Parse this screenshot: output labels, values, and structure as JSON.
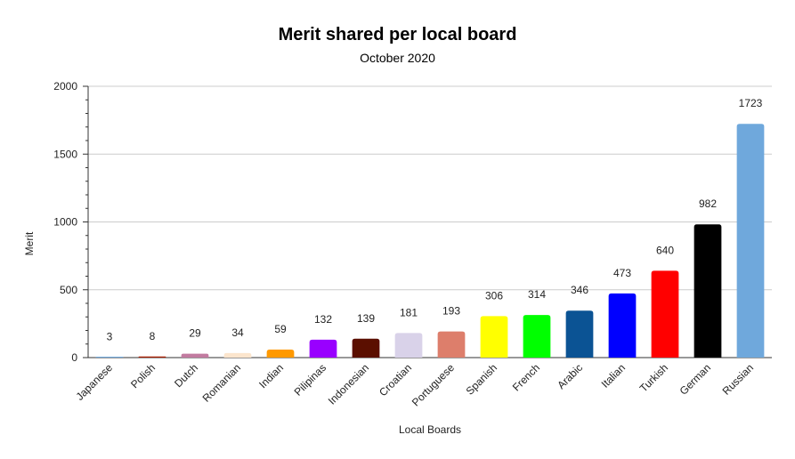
{
  "chart_data": {
    "type": "bar",
    "title": "Merit shared per local board",
    "subtitle": "October 2020",
    "xlabel": "Local Boards",
    "ylabel": "Merit",
    "ylim": [
      0,
      2000
    ],
    "yticks": [
      0,
      500,
      1000,
      1500,
      2000
    ],
    "grid": true,
    "legend": "none",
    "categories": [
      "Japanese",
      "Polish",
      "Dutch",
      "Romanian",
      "Indian",
      "Pilipinas",
      "Indonesian",
      "Croatian",
      "Portuguese",
      "Spanish",
      "French",
      "Arabic",
      "Italian",
      "Turkish",
      "German",
      "Russian"
    ],
    "values": [
      3,
      8,
      29,
      34,
      59,
      132,
      139,
      181,
      193,
      306,
      314,
      346,
      473,
      640,
      982,
      1723
    ],
    "colors": [
      "#6fa8dc",
      "#a61c00",
      "#c27ba0",
      "#fce5cd",
      "#ff9900",
      "#9900ff",
      "#5b0f00",
      "#d9d2e9",
      "#dd7e6b",
      "#ffff00",
      "#00ff00",
      "#0b5394",
      "#0000ff",
      "#ff0000",
      "#000000",
      "#6fa8dc"
    ]
  }
}
